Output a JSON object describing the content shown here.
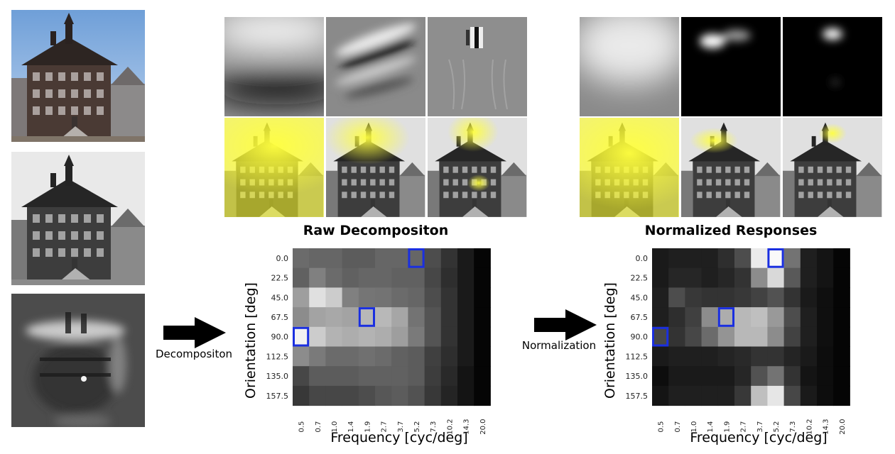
{
  "left_column": {
    "images": [
      "input-photo",
      "grayscale-photo",
      "filtered-photo"
    ]
  },
  "arrows": {
    "decomposition_label": "Decompositon",
    "normalization_label": "Normalization"
  },
  "panels": [
    {
      "title": "Raw Decompositon",
      "filter_images": [
        "low-frequency-filter",
        "mid-frequency-filter",
        "high-frequency-filter"
      ],
      "overlay_images": [
        "overlay-low",
        "overlay-mid",
        "overlay-high"
      ]
    },
    {
      "title": "Normalized Responses",
      "filter_images": [
        "normalized-low",
        "normalized-mid",
        "normalized-high"
      ],
      "overlay_images": [
        "overlay-low-normalized",
        "overlay-mid-normalized",
        "overlay-high-normalized"
      ]
    }
  ],
  "chart_data": [
    {
      "type": "heatmap",
      "title": "Raw Decompositon",
      "xlabel": "Frequency [cyc/deg]",
      "ylabel": "Orientation [deg]",
      "x": [
        "0.5",
        "0.7",
        "1.0",
        "1.4",
        "1.9",
        "2.7",
        "3.7",
        "5.2",
        "7.3",
        "10.2",
        "14.3",
        "20.0"
      ],
      "y": [
        "0.0",
        "22.5",
        "45.0",
        "67.5",
        "90.0",
        "112.5",
        "135.0",
        "157.5"
      ],
      "values": [
        [
          0.42,
          0.4,
          0.4,
          0.36,
          0.36,
          0.4,
          0.4,
          0.4,
          0.3,
          0.2,
          0.1,
          0.02
        ],
        [
          0.38,
          0.5,
          0.42,
          0.38,
          0.4,
          0.4,
          0.38,
          0.38,
          0.28,
          0.18,
          0.1,
          0.02
        ],
        [
          0.62,
          0.88,
          0.8,
          0.5,
          0.46,
          0.45,
          0.42,
          0.4,
          0.3,
          0.2,
          0.1,
          0.02
        ],
        [
          0.55,
          0.64,
          0.66,
          0.64,
          0.72,
          0.72,
          0.65,
          0.45,
          0.33,
          0.2,
          0.1,
          0.02
        ],
        [
          0.95,
          0.8,
          0.7,
          0.68,
          0.7,
          0.68,
          0.62,
          0.48,
          0.33,
          0.2,
          0.1,
          0.02
        ],
        [
          0.55,
          0.48,
          0.42,
          0.42,
          0.44,
          0.42,
          0.38,
          0.36,
          0.25,
          0.18,
          0.1,
          0.02
        ],
        [
          0.28,
          0.36,
          0.36,
          0.36,
          0.38,
          0.38,
          0.38,
          0.36,
          0.24,
          0.16,
          0.08,
          0.02
        ],
        [
          0.22,
          0.28,
          0.28,
          0.28,
          0.3,
          0.34,
          0.36,
          0.32,
          0.22,
          0.14,
          0.08,
          0.02
        ]
      ],
      "highlighted": [
        [
          0,
          7
        ],
        [
          3,
          4
        ],
        [
          4,
          0
        ]
      ],
      "highlight_color": "#1a2fe0"
    },
    {
      "type": "heatmap",
      "title": "Normalized Responses",
      "xlabel": "Frequency [cyc/deg]",
      "ylabel": "Orientation [deg]",
      "x": [
        "0.5",
        "0.7",
        "1.0",
        "1.4",
        "1.9",
        "2.7",
        "3.7",
        "5.2",
        "7.3",
        "10.2",
        "14.3",
        "20.0"
      ],
      "y": [
        "0.0",
        "22.5",
        "45.0",
        "67.5",
        "90.0",
        "112.5",
        "135.0",
        "157.5"
      ],
      "values": [
        [
          0.1,
          0.12,
          0.12,
          0.12,
          0.18,
          0.3,
          0.92,
          0.98,
          0.45,
          0.12,
          0.08,
          0.02
        ],
        [
          0.1,
          0.15,
          0.15,
          0.12,
          0.15,
          0.2,
          0.55,
          0.85,
          0.35,
          0.12,
          0.08,
          0.02
        ],
        [
          0.12,
          0.3,
          0.22,
          0.2,
          0.2,
          0.22,
          0.26,
          0.32,
          0.2,
          0.1,
          0.06,
          0.02
        ],
        [
          0.12,
          0.18,
          0.25,
          0.55,
          0.68,
          0.72,
          0.75,
          0.6,
          0.3,
          0.12,
          0.06,
          0.02
        ],
        [
          0.28,
          0.2,
          0.28,
          0.42,
          0.58,
          0.72,
          0.72,
          0.55,
          0.26,
          0.12,
          0.06,
          0.02
        ],
        [
          0.1,
          0.12,
          0.12,
          0.12,
          0.14,
          0.16,
          0.2,
          0.2,
          0.14,
          0.1,
          0.05,
          0.02
        ],
        [
          0.05,
          0.1,
          0.1,
          0.1,
          0.1,
          0.15,
          0.32,
          0.45,
          0.2,
          0.08,
          0.05,
          0.02
        ],
        [
          0.08,
          0.12,
          0.12,
          0.12,
          0.12,
          0.22,
          0.75,
          0.9,
          0.28,
          0.1,
          0.05,
          0.02
        ]
      ],
      "highlighted": [
        [
          0,
          7
        ],
        [
          3,
          4
        ],
        [
          4,
          0
        ]
      ],
      "highlight_color": "#1a2fe0"
    }
  ]
}
